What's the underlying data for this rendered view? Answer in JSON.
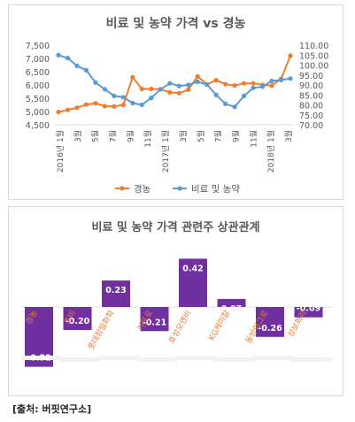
{
  "source": "[출처: 버핏연구소]",
  "chart_data": [
    {
      "type": "line",
      "title": "비료 및 농약 가격 vs 경농",
      "x_tick_labels": [
        "2016년 1월",
        "3월",
        "5월",
        "7월",
        "9월",
        "11월",
        "2017년 1월",
        "3월",
        "5월",
        "7월",
        "9월",
        "11월",
        "2018년 1월",
        "3월"
      ],
      "y_left_ticks": [
        "4,500",
        "5,000",
        "5,500",
        "6,000",
        "6,500",
        "7,000",
        "7,500"
      ],
      "y_right_ticks": [
        "70.00",
        "75.00",
        "80.00",
        "85.00",
        "90.00",
        "95.00",
        "100.00",
        "105.00",
        "110.00"
      ],
      "ylim_left": [
        4500,
        7500
      ],
      "ylim_right": [
        70,
        110
      ],
      "series": [
        {
          "name": "경농",
          "axis": "left",
          "color": "#ed7d31",
          "values": [
            4980,
            5060,
            5140,
            5260,
            5310,
            5200,
            5190,
            5250,
            6290,
            5850,
            5850,
            5840,
            5720,
            5690,
            5820,
            6320,
            6020,
            6180,
            6030,
            5980,
            6060,
            6060,
            6000,
            5970,
            6230,
            7100
          ]
        },
        {
          "name": "비료 및 농약",
          "axis": "right",
          "color": "#5b9bd5",
          "values": [
            105.0,
            103.5,
            99.6,
            97.4,
            91.2,
            87.8,
            84.5,
            83.8,
            80.9,
            80.0,
            83.5,
            87.8,
            90.8,
            89.5,
            90.0,
            91.6,
            90.2,
            85.0,
            80.5,
            79.0,
            84.5,
            88.5,
            89.1,
            92.0,
            92.5,
            93.2
          ]
        }
      ],
      "legend_position": "bottom"
    },
    {
      "type": "bar",
      "title": "비료 및 농약 가격 관련주 상관관계",
      "categories": [
        "경농",
        "조비",
        "롯데정밀화학",
        "카프로",
        "효성오앤비",
        "KG케미칼",
        "동방아그로",
        "성보화학"
      ],
      "values": [
        -0.52,
        -0.2,
        0.23,
        -0.21,
        0.42,
        0.07,
        -0.26,
        -0.09
      ],
      "value_labels": [
        "-0.52",
        "-0.20",
        "0.23",
        "-0.21",
        "0.42",
        "0.07",
        "-0.26",
        "-0.09"
      ],
      "bar_color": "#7030a0",
      "label_color": "#ed7d31"
    }
  ]
}
